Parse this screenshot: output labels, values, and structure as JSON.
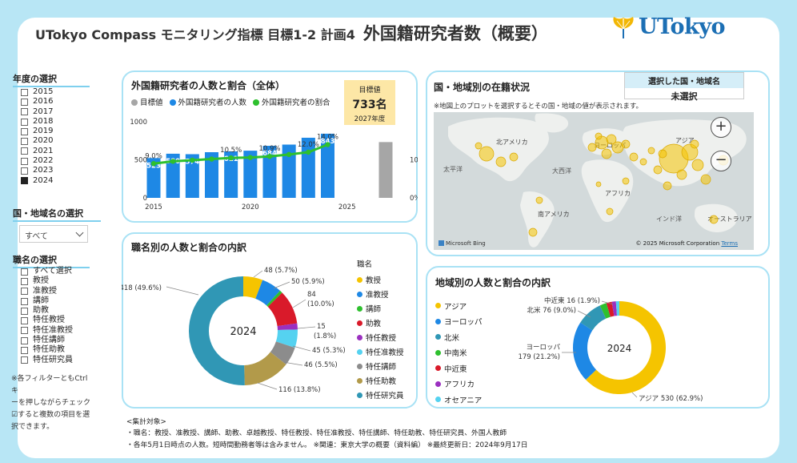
{
  "header": {
    "title_prefix": "UTokyo Compass モニタリング指標 目標1-2 計画4",
    "title_main": "外国籍研究者数（概要）",
    "logo_text": "UTokyo"
  },
  "colors": {
    "accent_border": "#a9e2f5",
    "bar": "#1e88e5",
    "line": "#2ec02e",
    "target": "#a6a6a6",
    "background": "#b8e6f5"
  },
  "sidebar": {
    "year_filter": {
      "title": "年度の選択",
      "items": [
        {
          "label": "2015",
          "checked": false
        },
        {
          "label": "2016",
          "checked": false
        },
        {
          "label": "2017",
          "checked": false
        },
        {
          "label": "2018",
          "checked": false
        },
        {
          "label": "2019",
          "checked": false
        },
        {
          "label": "2020",
          "checked": false
        },
        {
          "label": "2021",
          "checked": false
        },
        {
          "label": "2022",
          "checked": false
        },
        {
          "label": "2023",
          "checked": false
        },
        {
          "label": "2024",
          "checked": true
        }
      ]
    },
    "region_filter": {
      "title": "国・地域名の選択",
      "selected": "すべて"
    },
    "position_filter": {
      "title": "職名の選択",
      "items": [
        {
          "label": "すべて選択",
          "checked": false
        },
        {
          "label": "教授",
          "checked": false
        },
        {
          "label": "准教授",
          "checked": false
        },
        {
          "label": "講師",
          "checked": false
        },
        {
          "label": "助教",
          "checked": false
        },
        {
          "label": "特任教授",
          "checked": false
        },
        {
          "label": "特任准教授",
          "checked": false
        },
        {
          "label": "特任講師",
          "checked": false
        },
        {
          "label": "特任助教",
          "checked": false
        },
        {
          "label": "特任研究員",
          "checked": false
        }
      ]
    },
    "note_lines": [
      "※各フィルターともCtrlキ",
      "ーを押しながらチェック",
      "☑すると複数の項目を選",
      "択できます。"
    ]
  },
  "cards": {
    "overall": {
      "title": "外国籍研究者の人数と割合（全体）",
      "legend": [
        {
          "label": "目標値",
          "color": "#a6a6a6"
        },
        {
          "label": "外国籍研究者の人数",
          "color": "#1e88e5"
        },
        {
          "label": "外国籍研究者の割合",
          "color": "#2ec02e"
        }
      ],
      "target": {
        "label": "目標値",
        "value": "733名",
        "year": "2027年度"
      }
    },
    "position": {
      "title": "職名別の人数と割合の内訳",
      "legend_title": "職名",
      "center_label": "2024"
    },
    "map": {
      "title": "国・地域別の在籍状況",
      "note": "※地図上のプロットを選択するとその国・地域の値が表示されます。",
      "selected_header": "選択した国・地域名",
      "selected_value": "未選択",
      "labels": [
        "北アメリカ",
        "ヨーロッパ",
        "アジア",
        "大西洋",
        "太平洋",
        "アフリカ",
        "南アメリカ",
        "インド洋",
        "オーストラリア"
      ],
      "zoom_in": "+",
      "zoom_out": "−",
      "bing": "Microsoft Bing",
      "copyright": "© 2025 Microsoft Corporation",
      "terms": "Terms"
    },
    "region": {
      "title": "地域別の人数と割合の内訳",
      "center_label": "2024"
    }
  },
  "chart_data": [
    {
      "type": "bar",
      "categories": [
        "2015",
        "2016",
        "2017",
        "2018",
        "2019",
        "2020",
        "2021",
        "2022",
        "2023",
        "2024",
        "2027"
      ],
      "x_ticks": [
        "2015",
        "2020",
        "2025"
      ],
      "y_ticks": [
        "0",
        "500",
        "1000"
      ],
      "y2_ticks": [
        "0%",
        "10%"
      ],
      "ylim": [
        0,
        1000
      ],
      "y2lim": [
        0,
        20
      ],
      "series": [
        {
          "name": "外国籍研究者の人数",
          "values": [
            523,
            580,
            574,
            600,
            611,
            620,
            684,
            700,
            790,
            843,
            null
          ],
          "labels": [
            "523",
            "580",
            "574",
            "",
            "611",
            "",
            "684",
            "",
            "",
            "843",
            ""
          ]
        },
        {
          "name": "目標値",
          "values": [
            null,
            null,
            null,
            null,
            null,
            null,
            null,
            null,
            null,
            null,
            733
          ]
        },
        {
          "name": "外国籍研究者の割合",
          "values": [
            9.0,
            9.6,
            9.9,
            10.2,
            10.5,
            10.6,
            10.9,
            11.4,
            12.0,
            14.0,
            null
          ],
          "labels": [
            "9.0%",
            "",
            "",
            "",
            "10.5%",
            "",
            "10.9%",
            "",
            "12.0%",
            "14.0%",
            ""
          ]
        }
      ]
    },
    {
      "type": "pie",
      "title": "職名別",
      "slices": [
        {
          "name": "教授",
          "value": 48,
          "pct": "5.7%",
          "color": "#f5c400"
        },
        {
          "name": "准教授",
          "value": 50,
          "pct": "5.9%",
          "color": "#1e88e5"
        },
        {
          "name": "講師",
          "value": 7,
          "pct": "0.8%",
          "color": "#2ec02e"
        },
        {
          "name": "助教",
          "value": 84,
          "pct": "10.0%",
          "color": "#d91a2a"
        },
        {
          "name": "特任教授",
          "value": 15,
          "pct": "1.8%",
          "color": "#9b30c0"
        },
        {
          "name": "特任准教授",
          "value": 45,
          "pct": "5.3%",
          "color": "#55d2f0"
        },
        {
          "name": "特任講師",
          "value": 46,
          "pct": "5.5%",
          "color": "#8c8c8c"
        },
        {
          "name": "特任助教",
          "value": 116,
          "pct": "13.8%",
          "color": "#b29a4a"
        },
        {
          "name": "特任研究員",
          "value": 418,
          "pct": "49.6%",
          "color": "#3097b5"
        }
      ],
      "labels": [
        {
          "text": "48 (5.7%)"
        },
        {
          "text": "50 (5.9%)"
        },
        {
          "text": "84"
        },
        {
          "text": "(10.0%)"
        },
        {
          "text": "15"
        },
        {
          "text": "(1.8%)"
        },
        {
          "text": "45 (5.3%)"
        },
        {
          "text": "46 (5.5%)"
        },
        {
          "text": "116 (13.8%)"
        },
        {
          "text": "418 (49.6%)"
        }
      ]
    },
    {
      "type": "pie",
      "title": "地域別",
      "slices": [
        {
          "name": "アジア",
          "value": 530,
          "pct": "62.9%",
          "color": "#f5c400"
        },
        {
          "name": "ヨーロッパ",
          "value": 179,
          "pct": "21.2%",
          "color": "#1e88e5"
        },
        {
          "name": "北米",
          "value": 76,
          "pct": "9.0%",
          "color": "#3097b5"
        },
        {
          "name": "中南米",
          "value": 20,
          "pct": "2.4%",
          "color": "#2ec02e"
        },
        {
          "name": "中近東",
          "value": 16,
          "pct": "1.9%",
          "color": "#d91a2a"
        },
        {
          "name": "アフリカ",
          "value": 12,
          "pct": "1.4%",
          "color": "#9b30c0"
        },
        {
          "name": "オセアニア",
          "value": 10,
          "pct": "1.2%",
          "color": "#55d2f0"
        }
      ],
      "labels": [
        {
          "text": "中近東 16 (1.9%)"
        },
        {
          "text": "北米 76 (9.0%)"
        },
        {
          "text": "ヨーロッパ"
        },
        {
          "text": "179 (21.2%)"
        },
        {
          "text": "アジア 530 (62.9%)"
        }
      ]
    }
  ],
  "footer": {
    "lines": [
      "<集計対象>",
      "・職名：教授、准教授、講師、助教、卓越教授、特任教授、特任准教授、特任講師、特任助教、特任研究員、外国人教師",
      "・各年5月1日時点の人数。短時間勤務者等は含みません。 ※関連：東京大学の概要（資料編） ※最終更新日：2024年9月17日"
    ]
  }
}
